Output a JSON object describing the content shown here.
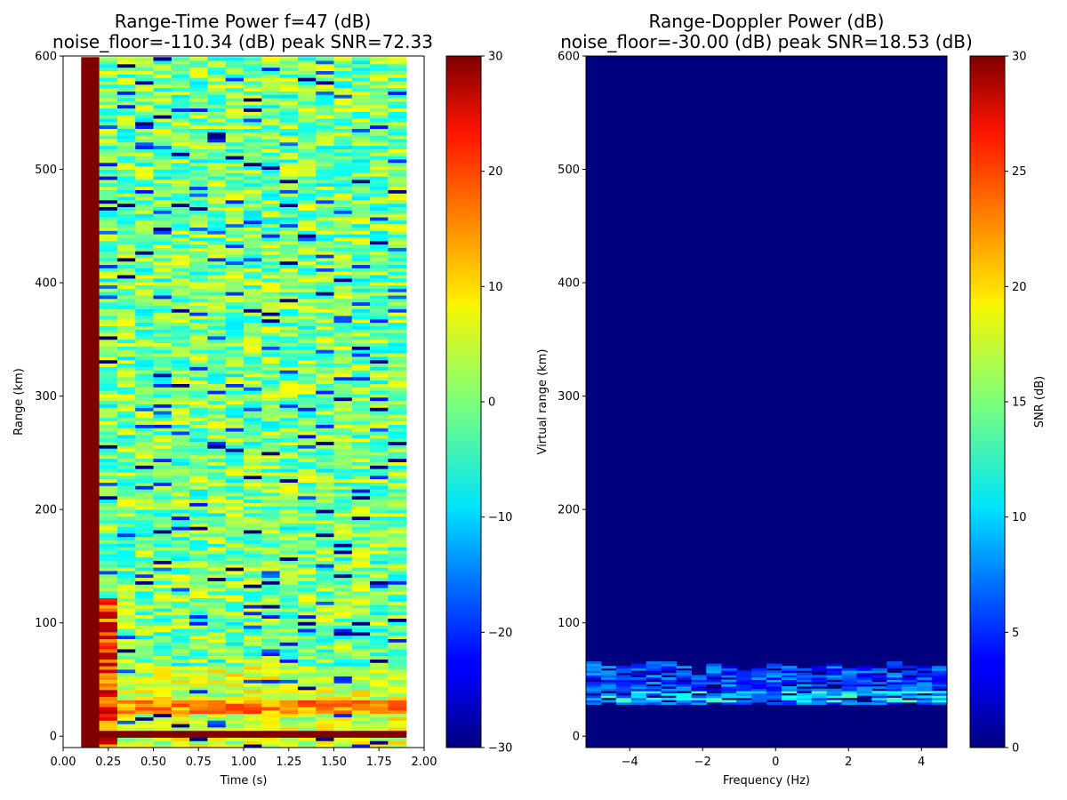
{
  "chart_data": [
    {
      "type": "heatmap",
      "title": "Range-Time Power f=47 (dB)",
      "subtitle": "noise_floor=-110.34 (dB) peak SNR=72.33",
      "xlabel": "Time (s)",
      "ylabel": "Range (km)",
      "xlim": [
        0.0,
        2.0
      ],
      "ylim": [
        -10,
        600
      ],
      "xticks": [
        0.0,
        0.25,
        0.5,
        0.75,
        1.0,
        1.25,
        1.5,
        1.75,
        2.0
      ],
      "xtick_labels": [
        "0.00",
        "0.25",
        "0.50",
        "0.75",
        "1.00",
        "1.25",
        "1.50",
        "1.75",
        "2.00"
      ],
      "yticks": [
        0,
        100,
        200,
        300,
        400,
        500,
        600
      ],
      "ytick_labels": [
        "0",
        "100",
        "200",
        "300",
        "400",
        "500",
        "600"
      ],
      "colormap": "jet",
      "colorbar": {
        "range": [
          -30,
          30
        ],
        "ticks": [
          -30,
          -20,
          -10,
          0,
          10,
          20,
          30
        ],
        "tick_labels": [
          "−30",
          "−20",
          "−10",
          "0",
          "10",
          "20",
          "30"
        ],
        "label": ""
      },
      "data_extent": {
        "time_s": [
          0.1,
          1.9
        ],
        "range_km": [
          -10,
          598
        ]
      },
      "features": {
        "saturated_column": {
          "time_s": [
            0.1,
            0.2
          ],
          "value_db": 30
        },
        "strong_near_range_column": {
          "time_s": [
            0.2,
            0.3
          ],
          "range_km": [
            -10,
            120
          ],
          "value_db": [
            10,
            30
          ]
        },
        "saturated_row": {
          "range_km": [
            -3,
            3
          ],
          "value_db": 30
        },
        "enhanced_band": {
          "range_km": [
            20,
            30
          ],
          "value_db": [
            10,
            20
          ]
        },
        "background_level_db": [
          -10,
          10
        ]
      }
    },
    {
      "type": "heatmap",
      "title": "Range-Doppler Power (dB)",
      "subtitle": "noise_floor=-30.00 (dB) peak SNR=18.53 (dB)",
      "xlabel": "Frequency (Hz)",
      "ylabel": "Virtual range (km)",
      "xlim": [
        -5.2,
        4.7
      ],
      "ylim": [
        -10,
        600
      ],
      "xticks": [
        -4,
        -2,
        0,
        2,
        4
      ],
      "xtick_labels": [
        "−4",
        "−2",
        "0",
        "2",
        "4"
      ],
      "yticks": [
        0,
        100,
        200,
        300,
        400,
        500,
        600
      ],
      "ytick_labels": [
        "0",
        "100",
        "200",
        "300",
        "400",
        "500",
        "600"
      ],
      "colormap": "jet",
      "colorbar": {
        "range": [
          0,
          30
        ],
        "ticks": [
          0,
          5,
          10,
          15,
          20,
          25,
          30
        ],
        "tick_labels": [
          "0",
          "5",
          "10",
          "15",
          "20",
          "25",
          "30"
        ],
        "label": "SNR (dB)"
      },
      "features": {
        "background_level_db": 0,
        "echo_band": {
          "range_km": [
            28,
            65
          ],
          "value_db": [
            3,
            14
          ],
          "peak_range_km": [
            30,
            40
          ]
        }
      }
    }
  ]
}
